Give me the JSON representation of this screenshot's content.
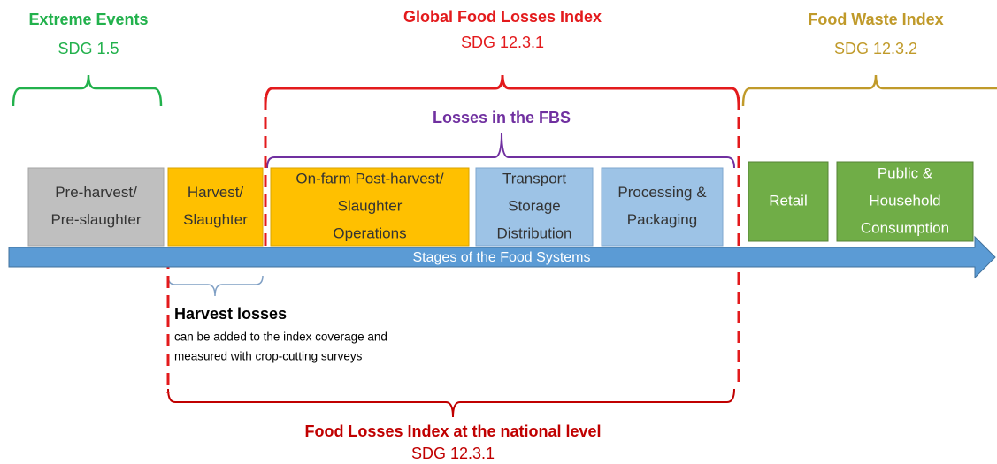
{
  "indices": [
    {
      "title": "Extreme Events",
      "sdg": "SDG 1.5"
    },
    {
      "title": "Global Food Losses Index",
      "sdg": "SDG 12.3.1"
    },
    {
      "title": "Food Waste Index",
      "sdg": "SDG 12.3.2"
    }
  ],
  "fbs_label": "Losses in the FBS",
  "stages": [
    {
      "lines": [
        "Pre-harvest/",
        "Pre-slaughter"
      ]
    },
    {
      "lines": [
        "Harvest/",
        "Slaughter"
      ]
    },
    {
      "lines": [
        "On-farm Post-harvest/",
        "Slaughter",
        "Operations"
      ]
    },
    {
      "lines": [
        "Transport",
        "Storage",
        "Distribution"
      ]
    },
    {
      "lines": [
        "Processing &",
        "Packaging"
      ]
    },
    {
      "lines": [
        "Retail"
      ]
    },
    {
      "lines": [
        "Public &",
        "Household",
        "Consumption"
      ]
    }
  ],
  "arrow_label": "Stages of the Food Systems",
  "harvest_losses": {
    "title": "Harvest losses",
    "lines": [
      "can be added to the index coverage and",
      "measured with crop-cutting surveys"
    ]
  },
  "national": {
    "title": "Food Losses Index at the national level",
    "sdg": "SDG 12.3.1"
  }
}
